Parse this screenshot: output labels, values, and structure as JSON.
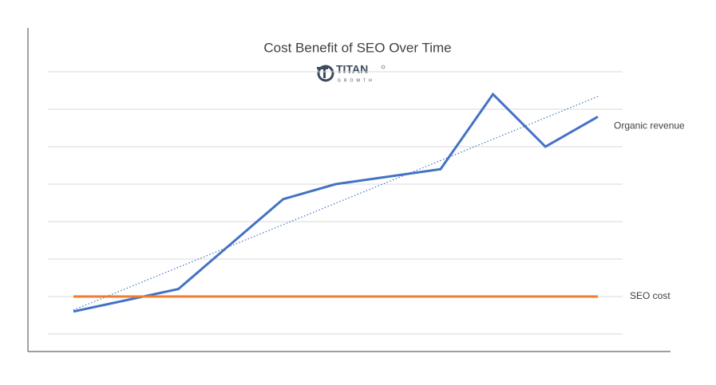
{
  "chart_data": {
    "type": "line",
    "title": "Cost Benefit of SEO Over Time",
    "logo": {
      "name": "TITAN",
      "tagline": "GROWTH"
    },
    "xlim": [
      0,
      10
    ],
    "ylim": [
      -0.5,
      8
    ],
    "yticks": [
      0,
      1,
      2,
      3,
      4,
      5,
      6,
      7
    ],
    "grid": true,
    "series": [
      {
        "name": "Organic revenue",
        "color": "#4472c4",
        "x": [
          0,
          2,
          4,
          5,
          7,
          8,
          9,
          10
        ],
        "values": [
          0.6,
          1.2,
          3.6,
          4.0,
          4.4,
          6.4,
          5.0,
          5.8
        ]
      },
      {
        "name": "SEO cost",
        "color": "#ed7d31",
        "x": [
          0,
          10
        ],
        "values": [
          1.0,
          1.0
        ]
      }
    ],
    "trendline": {
      "color": "#4472c4",
      "x": [
        0,
        10
      ],
      "values": [
        0.64,
        6.34
      ]
    }
  }
}
